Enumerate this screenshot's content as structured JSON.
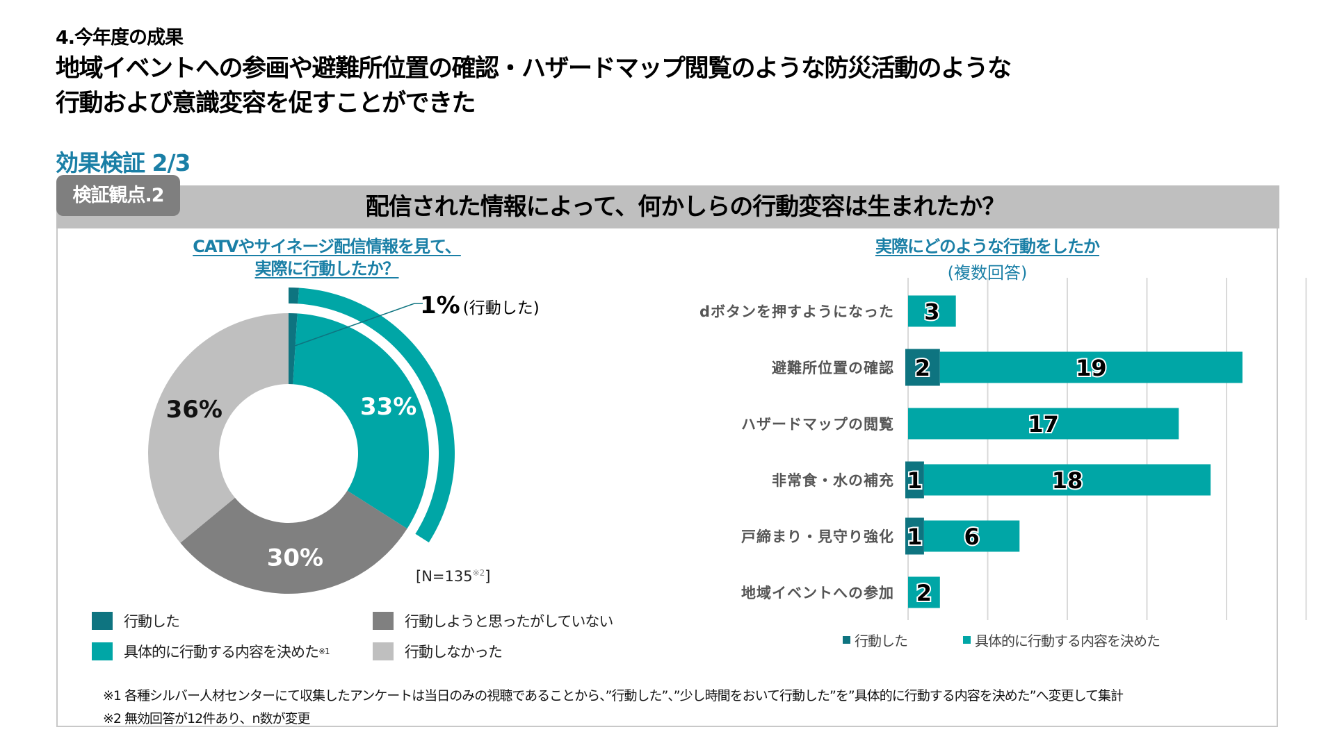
{
  "section_label": "4.今年度の成果",
  "headline_line1": "地域イベントへの参画や避難所位置の確認・ハザードマップ閲覧のような防災活動のような",
  "headline_line2": "行動および意識変容を促すことができた",
  "subsection": "効果検証 2/3",
  "badge": "検証観点.2",
  "question": "配信された情報によって、何かしらの行動変容は生まれたか？",
  "colors": {
    "acted": "#0e7480",
    "decided": "#00a6a6",
    "thought_not_acted": "#808080",
    "did_not_act": "#bfbfbf",
    "accent_blue": "#1a7fa6",
    "header_gray": "#bfbfbf"
  },
  "n_label": "[N=135",
  "n_note": "※2",
  "n_close": "]",
  "footnotes": [
    "※1 各種シルバー人材センターにて収集したアンケートは当日のみの視聴であることから、”行動した”、”少し時間をおいて行動した”を”具体的に行動する内容を決めた”へ変更して集計",
    "※2 無効回答が12件あり、n数が変更"
  ],
  "chart_data": [
    {
      "type": "pie",
      "variant": "donut",
      "title_line1": "CATVやサイネージ配信情報を見て、",
      "title_line2": "実際に行動したか？",
      "slices": [
        {
          "name": "行動した",
          "value": 1,
          "label": "1%",
          "color_key": "acted"
        },
        {
          "name": "具体的に行動する内容を決めた",
          "value": 33,
          "label": "33%",
          "color_key": "decided"
        },
        {
          "name": "行動しようと思ったがしていない",
          "value": 30,
          "label": "30%",
          "color_key": "thought_not_acted"
        },
        {
          "name": "行動しなかった",
          "value": 36,
          "label": "36%",
          "color_key": "did_not_act"
        }
      ],
      "callout": {
        "value": "1%",
        "text": "(行動した)"
      },
      "highlight_arc": {
        "from_slice": 0,
        "to_slice": 1
      },
      "legend": [
        {
          "label": "行動した",
          "color_key": "acted",
          "note": ""
        },
        {
          "label": "行動しようと思ったがしていない",
          "color_key": "thought_not_acted",
          "note": ""
        },
        {
          "label": "具体的に行動する内容を決めた",
          "color_key": "decided",
          "note": "※1"
        },
        {
          "label": "行動しなかった",
          "color_key": "did_not_act",
          "note": ""
        }
      ],
      "legend_placement": "bottom"
    },
    {
      "type": "bar",
      "orientation": "horizontal",
      "stacked": true,
      "title": "実際にどのような行動をしたか",
      "subtitle": "(複数回答)",
      "categories": [
        "dボタンを押すようになった",
        "避難所位置の確認",
        "ハザードマップの閲覧",
        "非常食・水の補充",
        "戸締まり・見守り強化",
        "地域イベントへの参加"
      ],
      "series": [
        {
          "name": "行動した",
          "color_key": "acted",
          "values": [
            0,
            2,
            0,
            1,
            1,
            0
          ]
        },
        {
          "name": "具体的に行動する内容を決めた",
          "color_key": "decided",
          "values": [
            3,
            19,
            17,
            18,
            6,
            2
          ]
        }
      ],
      "xlim": [
        0,
        25
      ],
      "grid": true,
      "grid_step": 5,
      "axis_labels_visible": false,
      "legend_placement": "bottom"
    }
  ]
}
